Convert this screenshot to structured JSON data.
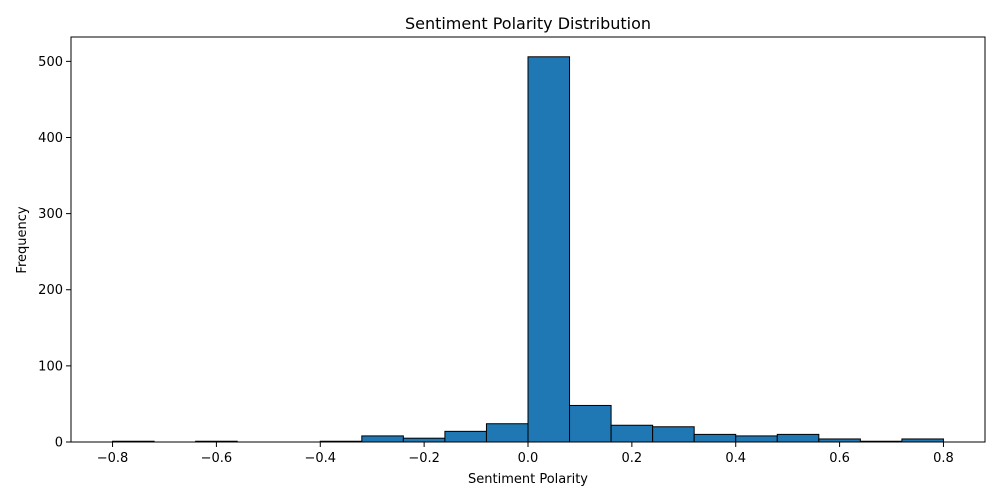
{
  "chart_data": {
    "type": "bar",
    "title": "Sentiment Polarity Distribution",
    "xlabel": "Sentiment Polarity",
    "ylabel": "Frequency",
    "xlim": [
      -0.88,
      0.88
    ],
    "ylim": [
      0,
      532
    ],
    "bin_edges": [
      -0.8,
      -0.72,
      -0.64,
      -0.56,
      -0.48,
      -0.4,
      -0.32,
      -0.24,
      -0.16,
      -0.08,
      0.0,
      0.08,
      0.16,
      0.24,
      0.32,
      0.4,
      0.48,
      0.56,
      0.64,
      0.72,
      0.8
    ],
    "values": [
      1,
      0,
      1,
      0,
      0,
      1,
      8,
      5,
      14,
      24,
      506,
      48,
      22,
      20,
      10,
      8,
      10,
      4,
      1,
      4
    ],
    "xticks": [
      -0.8,
      -0.6,
      -0.4,
      -0.2,
      0.0,
      0.2,
      0.4,
      0.6,
      0.8
    ],
    "xtick_labels": [
      "−0.8",
      "−0.6",
      "−0.4",
      "−0.2",
      "0.0",
      "0.2",
      "0.4",
      "0.6",
      "0.8"
    ],
    "yticks": [
      0,
      100,
      200,
      300,
      400,
      500
    ],
    "ytick_labels": [
      "0",
      "100",
      "200",
      "300",
      "400",
      "500"
    ],
    "bar_color": "#1f77b4",
    "edge_color": "#000000",
    "grid": false,
    "legend": "none"
  }
}
